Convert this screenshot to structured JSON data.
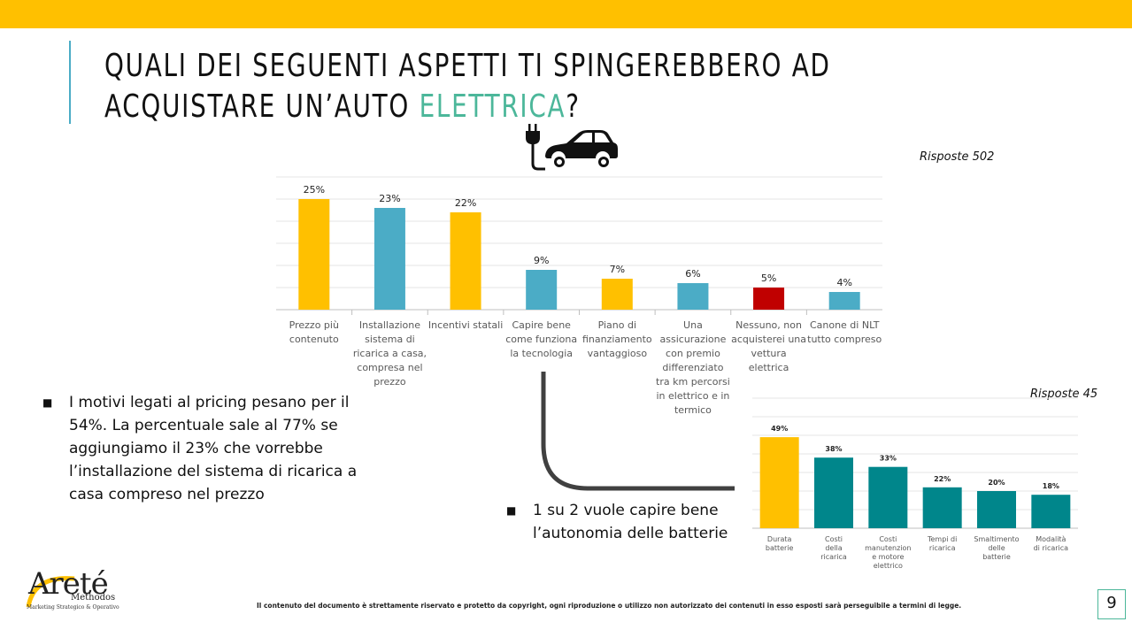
{
  "title": {
    "line1": "QUALI DEI SEGUENTI ASPETTI TI SPINGEREBBERO AD",
    "line2_before": "ACQUISTARE UN’AUTO ",
    "line2_accent": "ELETTRICA",
    "line2_after": "?"
  },
  "colors": {
    "accent": "#4CB79A",
    "brand_yellow": "#FFC000",
    "title_rule": "#4BACC6"
  },
  "icons": {
    "car": "electric-car-plug-icon",
    "bullet": "square-bullet-icon"
  },
  "responses_main": "Risposte 502",
  "responses_small": "Risposte 45",
  "chart_data": [
    {
      "type": "bar",
      "categories": [
        [
          "Prezzo più",
          "contenuto"
        ],
        [
          "Installazione",
          "sistema di",
          "ricarica a casa,",
          "compresa nel",
          "prezzo"
        ],
        [
          "Incentivi statali"
        ],
        [
          "Capire bene",
          "come funziona",
          "la tecnologia"
        ],
        [
          "Piano di",
          "finanziamento",
          "vantaggioso"
        ],
        [
          "Una",
          "assicurazione",
          "con premio",
          "differenziato",
          "tra km percorsi",
          "in elettrico e in",
          "termico"
        ],
        [
          "Nessuno, non",
          "acquisterei una",
          "vettura",
          "elettrica"
        ],
        [
          "Canone di NLT",
          "tutto compreso"
        ]
      ],
      "values": [
        25,
        23,
        22,
        9,
        7,
        6,
        5,
        4
      ],
      "labels": [
        "25%",
        "23%",
        "22%",
        "9%",
        "7%",
        "6%",
        "5%",
        "4%"
      ],
      "colors": [
        "#FFC000",
        "#4BACC6",
        "#FFC000",
        "#4BACC6",
        "#FFC000",
        "#4BACC6",
        "#C00000",
        "#4BACC6"
      ],
      "ylim": [
        0,
        30
      ],
      "grid": true
    },
    {
      "type": "bar",
      "categories": [
        [
          "Durata",
          "batterie"
        ],
        [
          "Costi",
          "della",
          "ricarica"
        ],
        [
          "Costi",
          "manutenzion",
          "e motore",
          "elettrico"
        ],
        [
          "Tempi di",
          "ricarica"
        ],
        [
          "Smaltimento",
          "delle",
          "batterie"
        ],
        [
          "Modalità",
          "di ricarica"
        ]
      ],
      "values": [
        49,
        38,
        33,
        22,
        20,
        18
      ],
      "labels": [
        "49%",
        "38%",
        "33%",
        "22%",
        "20%",
        "18%"
      ],
      "colors": [
        "#FFC000",
        "#00868B",
        "#00868B",
        "#00868B",
        "#00868B",
        "#00868B"
      ],
      "ylim": [
        0,
        70
      ],
      "grid": true
    }
  ],
  "bullets": {
    "pricing": "I motivi legati al pricing pesano per il 54%. La percentuale sale al 77% se aggiungiamo il 23% che vorrebbe l’installazione del sistema di ricarica a casa compreso nel prezzo",
    "autonomy": "1 su 2 vuole capire bene l’autonomia delle batterie"
  },
  "logo": {
    "name": "Areté",
    "sub": "Methodos",
    "tagline": "Marketing Strategico & Operativo"
  },
  "footer": "Il contenuto del documento è strettamente riservato e protetto da copyright, ogni riproduzione o utilizzo non autorizzato dei contenuti in esso esposti sarà perseguibile a termini di legge.",
  "page_number": "9"
}
